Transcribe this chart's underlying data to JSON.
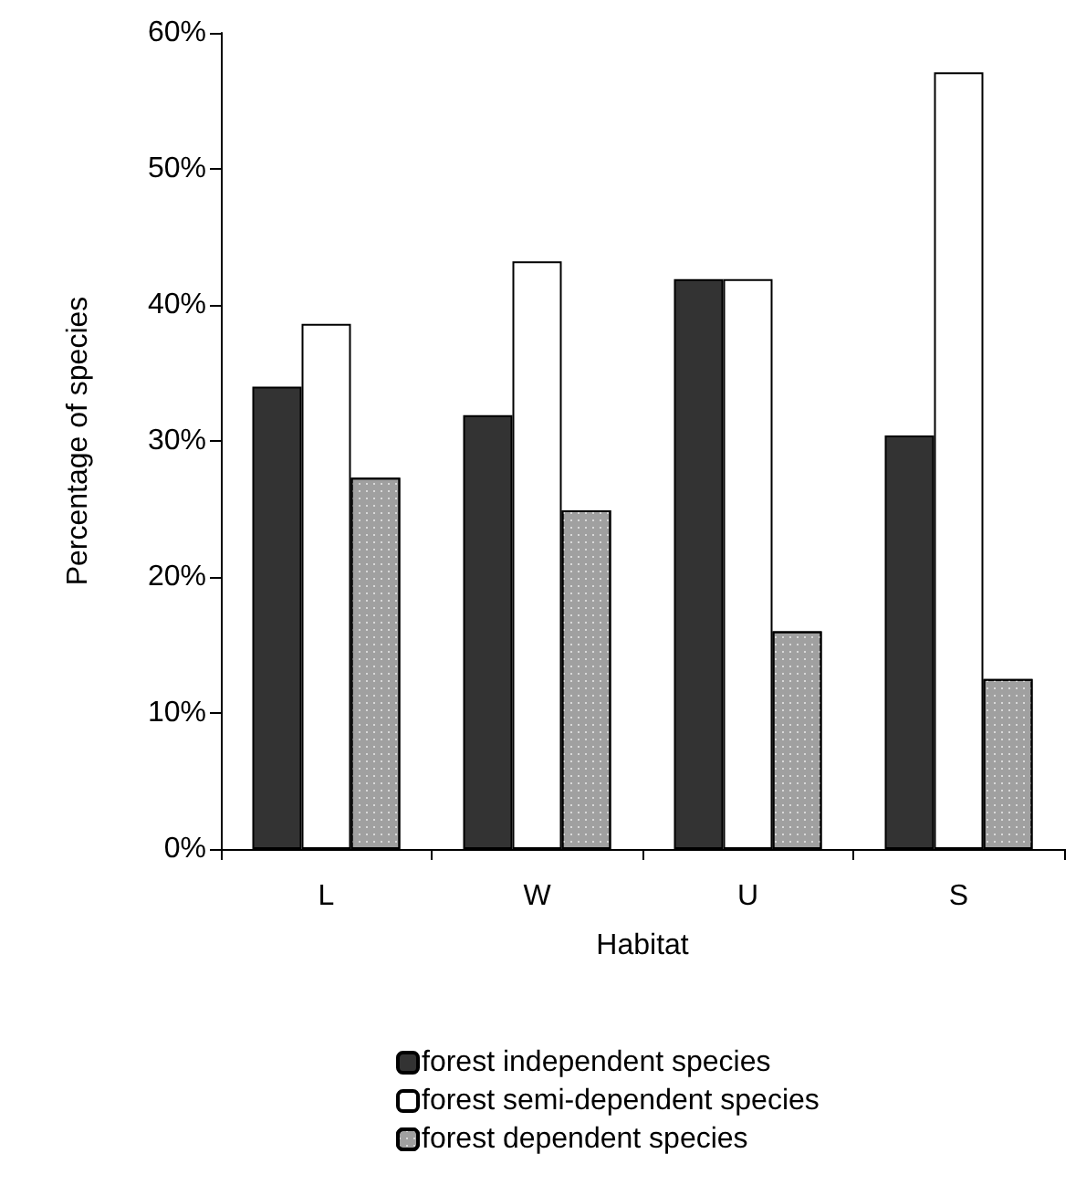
{
  "chart_data": {
    "type": "bar",
    "xlabel": "Habitat",
    "ylabel": "Percentage of species",
    "categories": [
      "L",
      "W",
      "U",
      "S"
    ],
    "series": [
      {
        "name": "forest independent species",
        "color": "#333333",
        "values": [
          34.0,
          31.9,
          41.9,
          30.4
        ]
      },
      {
        "name": "forest semi-dependent species",
        "color": "#ffffff",
        "values": [
          38.6,
          43.2,
          41.9,
          57.1
        ]
      },
      {
        "name": "forest dependent species",
        "color": "#a0a0a0",
        "values": [
          27.3,
          24.9,
          16.0,
          12.5
        ]
      }
    ],
    "ylim": [
      0,
      60
    ],
    "yticks": [
      {
        "value": 0,
        "label": "0%"
      },
      {
        "value": 10,
        "label": "10%"
      },
      {
        "value": 20,
        "label": "20%"
      },
      {
        "value": 30,
        "label": "30%"
      },
      {
        "value": 40,
        "label": "40%"
      },
      {
        "value": 50,
        "label": "50%"
      },
      {
        "value": 60,
        "label": "60%"
      }
    ],
    "grid": false,
    "legend": "bottom"
  }
}
